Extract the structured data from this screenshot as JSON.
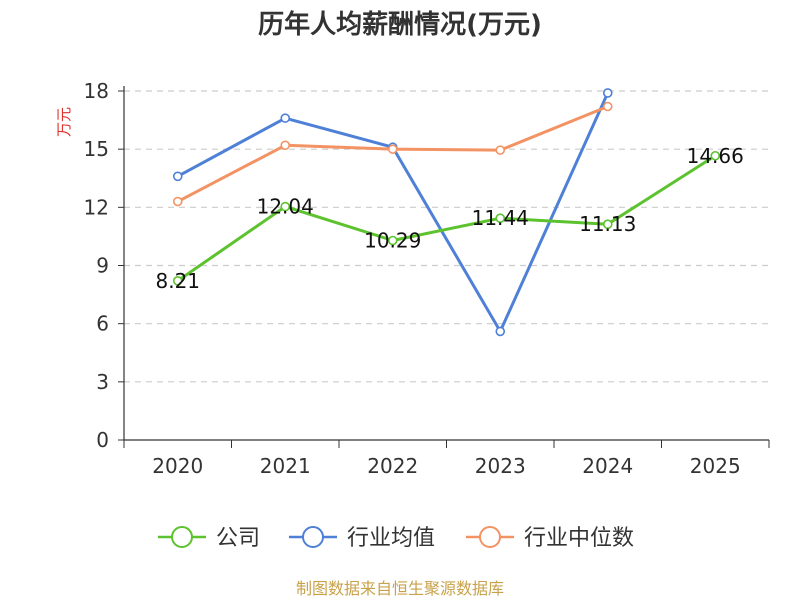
{
  "chart_data": {
    "type": "line",
    "title": "历年人均薪酬情况(万元)",
    "ylabel": "万元",
    "xlabel": "",
    "categories": [
      "2020",
      "2021",
      "2022",
      "2023",
      "2024",
      "2025"
    ],
    "ylim": [
      0,
      18
    ],
    "yticks": [
      0,
      3,
      6,
      9,
      12,
      15,
      18
    ],
    "grid": true,
    "legend_position": "bottom",
    "series": [
      {
        "name": "公司",
        "color": "#5cc22d",
        "values": [
          8.21,
          12.04,
          10.29,
          11.44,
          11.13,
          14.66
        ],
        "data_labels": [
          "8.21",
          "12.04",
          "10.29",
          "11.44",
          "11.13",
          "14.66"
        ]
      },
      {
        "name": "行业均值",
        "color": "#4f80d8",
        "values": [
          13.6,
          16.6,
          15.1,
          5.6,
          17.9,
          null
        ]
      },
      {
        "name": "行业中位数",
        "color": "#f39263",
        "values": [
          12.3,
          15.2,
          15.0,
          14.95,
          17.2,
          null
        ]
      }
    ]
  },
  "footer": {
    "source": "制图数据来自恒生聚源数据库",
    "source_color": "#c8a24a"
  },
  "colors": {
    "ylabel": "#e0302a",
    "axis": "#333333",
    "grid": "#cccccc"
  }
}
